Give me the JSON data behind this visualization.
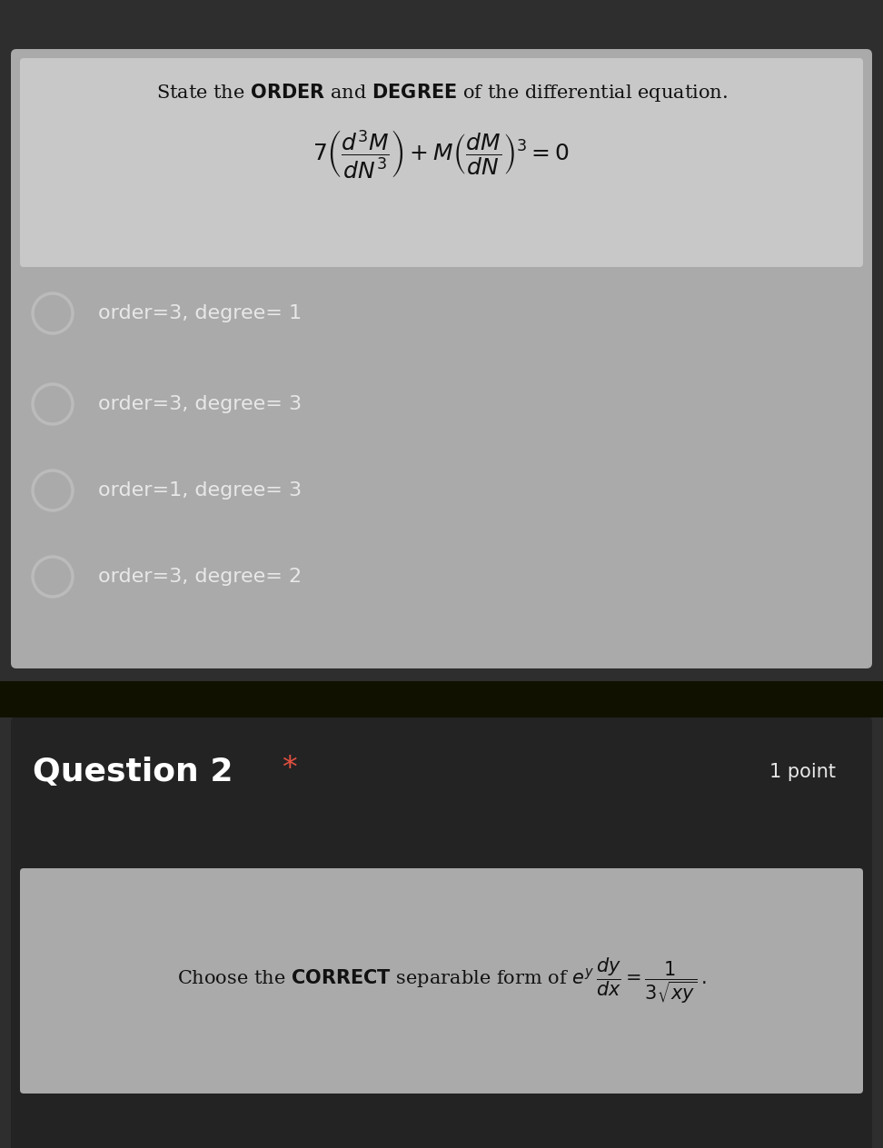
{
  "bg_outer": "#2e2e2e",
  "bg_q1_header": "#aaaaaa",
  "bg_q1_options": "#3d3d3d",
  "bg_separator": "#1a1a00",
  "bg_q2_section": "#232323",
  "bg_q2_box": "#aaaaaa",
  "text_dark": "#111111",
  "text_light": "#e8e8e8",
  "text_white": "#ffffff",
  "text_red": "#e05040",
  "circle_edge": "#bbbbbb",
  "options": [
    "order=3, degree= 1",
    "order=3, degree= 3",
    "order=1, degree= 3",
    "order=3, degree= 2"
  ],
  "figsize": [
    9.72,
    12.64
  ],
  "dpi": 100
}
